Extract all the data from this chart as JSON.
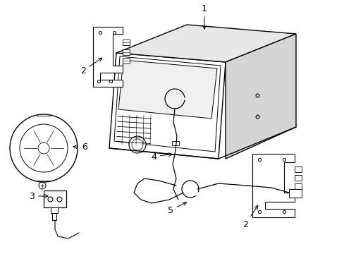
{
  "background_color": "#ffffff",
  "line_color": "#000000",
  "line_width": 1.0,
  "label_fontsize": 8,
  "figsize": [
    4.89,
    3.6
  ],
  "dpi": 100
}
